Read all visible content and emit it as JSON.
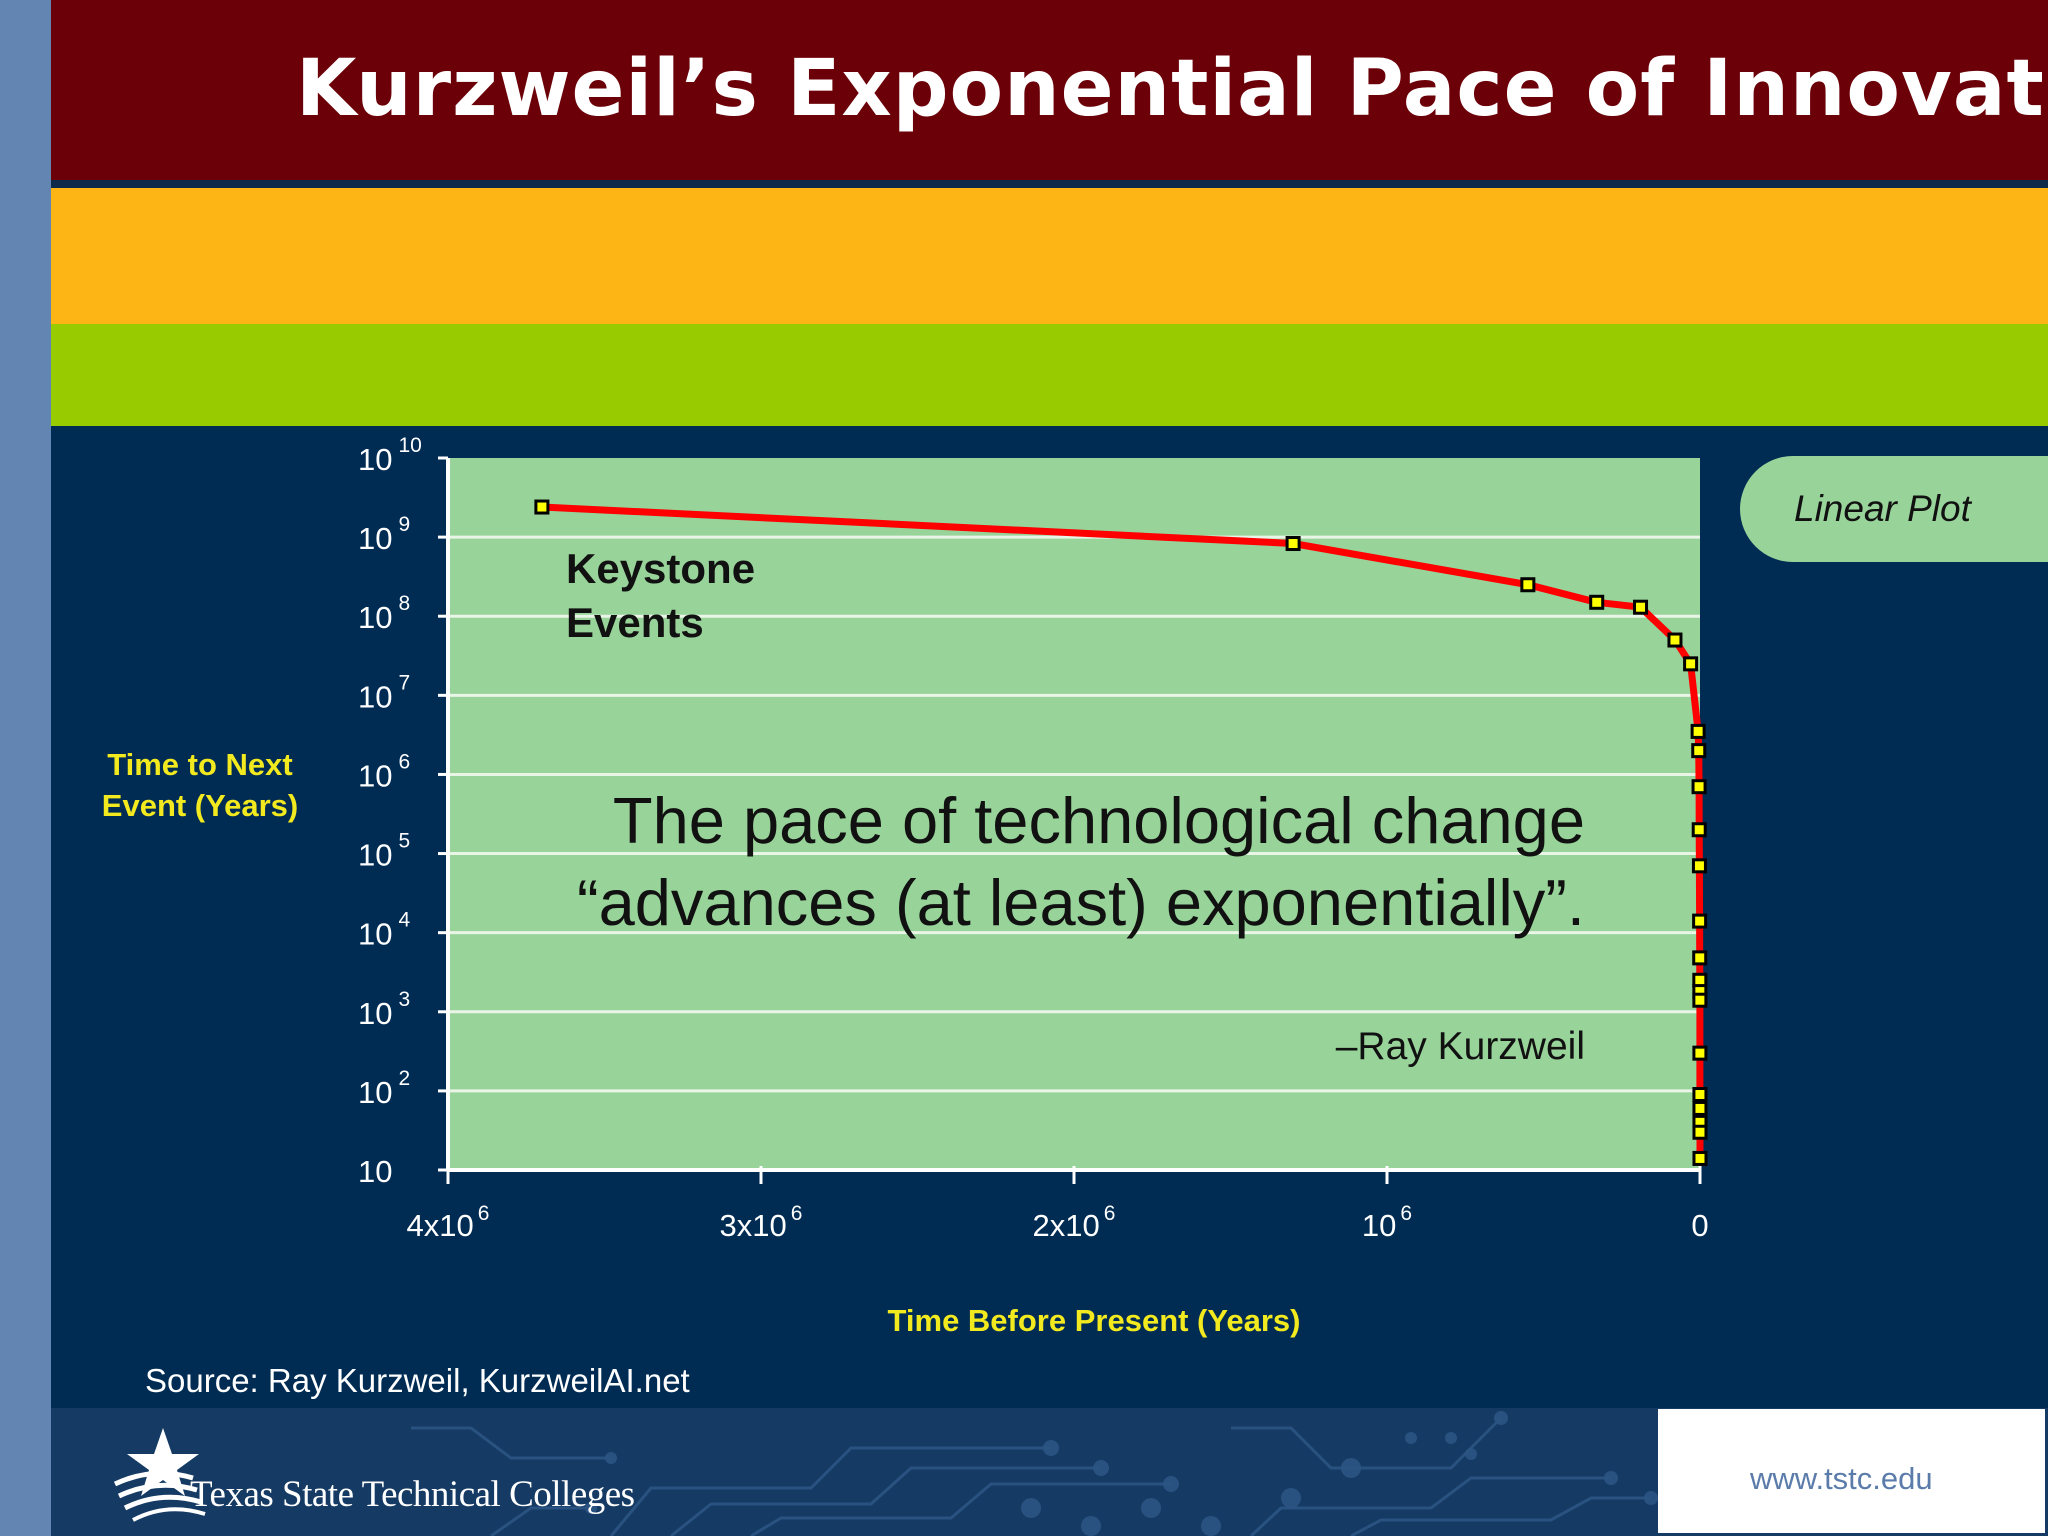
{
  "slide": {
    "title": "Kurzweil’s Exponential Pace of Innovation",
    "linear_tab": "Linear Plot",
    "keystone_label": "Keystone Events",
    "quote": "The pace of technological change “advances (at least) exponentially”.",
    "attribution": "–Ray Kurzweil",
    "source": "Source: Ray Kurzweil, KurzweilAI.net",
    "logo_text": "Texas State Technical Colleges",
    "url": "www.tstc.edu"
  },
  "colors": {
    "title_bar": "#6b0008",
    "orange_bar": "#fdb415",
    "green_bar": "#99cc00",
    "background": "#002b53",
    "plot_area": "#98d39a",
    "curve": "#ff0000",
    "marker_fill": "#ffff00",
    "axis_label": "#f2ea1e"
  },
  "chart_data": {
    "type": "line",
    "title": "Kurzweil’s Exponential Pace of Innovation",
    "xlabel": "Time Before Present (Years)",
    "ylabel": "Time to Next Event (Years)",
    "y_scale": "log",
    "xlim": [
      4000000,
      0
    ],
    "ylim": [
      10,
      10000000000
    ],
    "grid": true,
    "x_ticks": [
      {
        "value": 4000000,
        "base": "4x10",
        "exp": "6"
      },
      {
        "value": 3000000,
        "base": "3x10",
        "exp": "6"
      },
      {
        "value": 2000000,
        "base": "2x10",
        "exp": "6"
      },
      {
        "value": 1000000,
        "base": "10",
        "exp": "6"
      },
      {
        "value": 0,
        "base": "0",
        "exp": ""
      }
    ],
    "y_ticks": [
      {
        "value": 10000000000,
        "base": "10",
        "exp": "10"
      },
      {
        "value": 1000000000,
        "base": "10",
        "exp": "9"
      },
      {
        "value": 100000000,
        "base": "10",
        "exp": "8"
      },
      {
        "value": 10000000,
        "base": "10",
        "exp": "7"
      },
      {
        "value": 1000000,
        "base": "10",
        "exp": "6"
      },
      {
        "value": 100000,
        "base": "10",
        "exp": "5"
      },
      {
        "value": 10000,
        "base": "10",
        "exp": "4"
      },
      {
        "value": 1000,
        "base": "10",
        "exp": "3"
      },
      {
        "value": 100,
        "base": "10",
        "exp": "2"
      },
      {
        "value": 10,
        "base": "10",
        "exp": ""
      }
    ],
    "series": [
      {
        "name": "Keystone Events",
        "x": [
          3700000,
          1300000,
          550000,
          330000,
          190000,
          80000,
          30000,
          6000,
          4000,
          3000,
          2500,
          1800,
          1200,
          900,
          600,
          500,
          400,
          300,
          200,
          150,
          100,
          80,
          50
        ],
        "y": [
          2400000000,
          830000000,
          250000000,
          150000000,
          130000000,
          50000000,
          25000000,
          3500000,
          2000000,
          700000,
          200000,
          70000,
          14000,
          4800,
          2500,
          1800,
          1400,
          300,
          90,
          60,
          40,
          30,
          14
        ]
      }
    ]
  }
}
